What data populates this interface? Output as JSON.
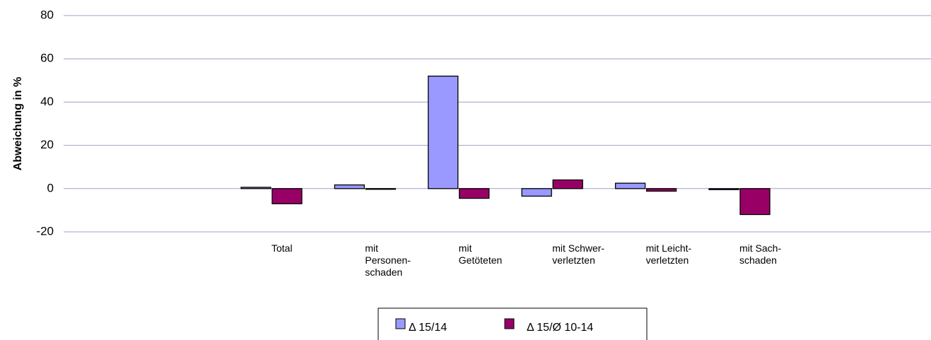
{
  "chart_data": {
    "type": "bar",
    "y_label": "Abweichung in %",
    "categories": [
      [
        "Total"
      ],
      [
        "mit",
        "Personen-",
        "schaden"
      ],
      [
        "mit",
        "Getöteten"
      ],
      [
        "mit Schwer-",
        "verletzten"
      ],
      [
        "mit Leicht-",
        "verletzten"
      ],
      [
        "mit Sach-",
        "schaden"
      ]
    ],
    "series": [
      {
        "name": "Δ 15/14",
        "color": "#9999ff",
        "values": [
          0.6,
          1.7,
          52,
          -3.5,
          2.5,
          -0.5
        ]
      },
      {
        "name": "Δ 15/Ø 10-14",
        "color": "#990066",
        "values": [
          -7,
          -0.2,
          -4.5,
          4,
          -1.2,
          -12
        ]
      }
    ],
    "ylim": [
      -20,
      80
    ],
    "yticks": [
      -20,
      0,
      20,
      40,
      60,
      80
    ],
    "grid": true
  }
}
